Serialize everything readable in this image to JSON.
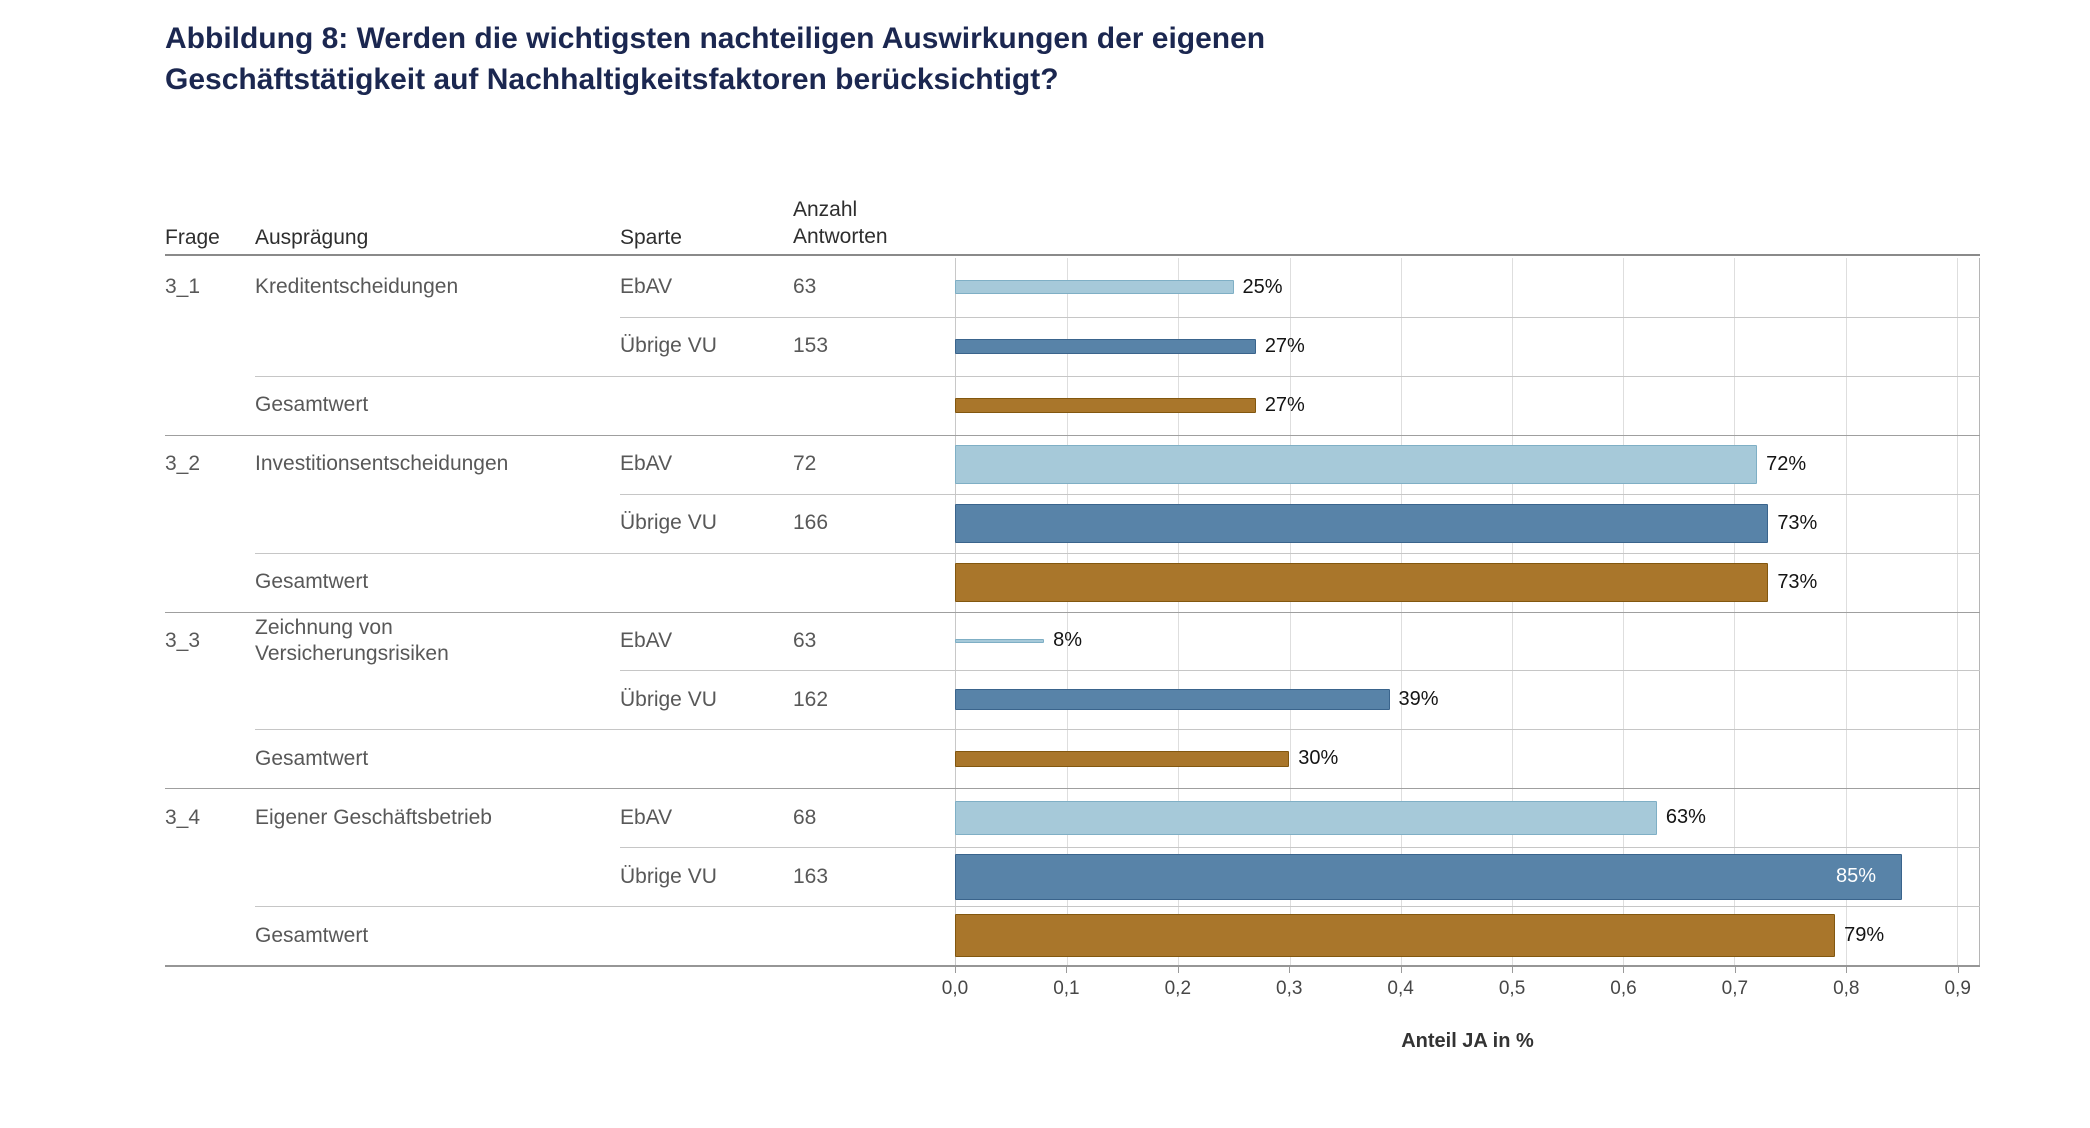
{
  "title": {
    "line1": "Abbildung 8: Werden die wichtigsten nachteiligen Auswirkungen der eigenen",
    "line2": "Geschäftstätigkeit auf Nachhaltigkeitsfaktoren berücksichtigt?",
    "color": "#1b2750"
  },
  "table_headers": {
    "frage": "Frage",
    "auspraegung": "Ausprägung",
    "sparte": "Sparte",
    "anzahl": "Anzahl Antworten"
  },
  "axis": {
    "ticks": [
      "0,0",
      "0,1",
      "0,2",
      "0,3",
      "0,4",
      "0,5",
      "0,6",
      "0,7",
      "0,8",
      "0,9"
    ],
    "tick_step": 0.1,
    "domain_max": 0.92,
    "title": "Anteil JA in %"
  },
  "colors": {
    "ebav": {
      "fill": "#a6c9d9",
      "border": "#7fafc5",
      "legend_name": "EbAV"
    },
    "uebrige": {
      "fill": "#5883a8",
      "border": "#3a648c",
      "legend_name": "Übrige VU"
    },
    "gesamt": {
      "fill": "#a9762b",
      "border": "#82570f",
      "legend_name": "Gesamtwert"
    }
  },
  "chart_data": {
    "type": "bar",
    "orientation": "horizontal",
    "title": "Abbildung 8: Werden die wichtigsten nachteiligen Auswirkungen der eigenen Geschäftstätigkeit auf Nachhaltigkeitsfaktoren berücksichtigt?",
    "xlabel": "Anteil JA in %",
    "xlim": [
      0,
      0.9
    ],
    "x_tick_labels": [
      "0,0",
      "0,1",
      "0,2",
      "0,3",
      "0,4",
      "0,5",
      "0,6",
      "0,7",
      "0,8",
      "0,9"
    ],
    "grid": true,
    "legend": false,
    "groups": [
      {
        "frage": "3_1",
        "auspraegung": "Kreditentscheidungen",
        "gesamt_label": "Gesamtwert",
        "rows": [
          {
            "sparte": "EbAV",
            "anzahl": "63",
            "value_pct": 25,
            "label": "25%",
            "series": "ebav",
            "label_inside": false
          },
          {
            "sparte": "Übrige VU",
            "anzahl": "153",
            "value_pct": 27,
            "label": "27%",
            "series": "uebrige",
            "label_inside": false
          },
          {
            "sparte": "",
            "anzahl": "",
            "value_pct": 27,
            "label": "27%",
            "series": "gesamt",
            "label_inside": false
          }
        ]
      },
      {
        "frage": "3_2",
        "auspraegung": "Investitionsentscheidungen",
        "gesamt_label": "Gesamtwert",
        "rows": [
          {
            "sparte": "EbAV",
            "anzahl": "72",
            "value_pct": 72,
            "label": "72%",
            "series": "ebav",
            "label_inside": false
          },
          {
            "sparte": "Übrige VU",
            "anzahl": "166",
            "value_pct": 73,
            "label": "73%",
            "series": "uebrige",
            "label_inside": false
          },
          {
            "sparte": "",
            "anzahl": "",
            "value_pct": 73,
            "label": "73%",
            "series": "gesamt",
            "label_inside": false
          }
        ]
      },
      {
        "frage": "3_3",
        "auspraegung": "Zeichnung von Versicherungsrisiken",
        "gesamt_label": "Gesamtwert",
        "rows": [
          {
            "sparte": "EbAV",
            "anzahl": "63",
            "value_pct": 8,
            "label": "8%",
            "series": "ebav",
            "label_inside": false
          },
          {
            "sparte": "Übrige VU",
            "anzahl": "162",
            "value_pct": 39,
            "label": "39%",
            "series": "uebrige",
            "label_inside": false
          },
          {
            "sparte": "",
            "anzahl": "",
            "value_pct": 30,
            "label": "30%",
            "series": "gesamt",
            "label_inside": false
          }
        ]
      },
      {
        "frage": "3_4",
        "auspraegung": "Eigener Geschäftsbetrieb",
        "gesamt_label": "Gesamtwert",
        "rows": [
          {
            "sparte": "EbAV",
            "anzahl": "68",
            "value_pct": 63,
            "label": "63%",
            "series": "ebav",
            "label_inside": false
          },
          {
            "sparte": "Übrige VU",
            "anzahl": "163",
            "value_pct": 85,
            "label": "85%",
            "series": "uebrige",
            "label_inside": true
          },
          {
            "sparte": "",
            "anzahl": "",
            "value_pct": 79,
            "label": "79%",
            "series": "gesamt",
            "label_inside": false
          }
        ]
      }
    ]
  }
}
